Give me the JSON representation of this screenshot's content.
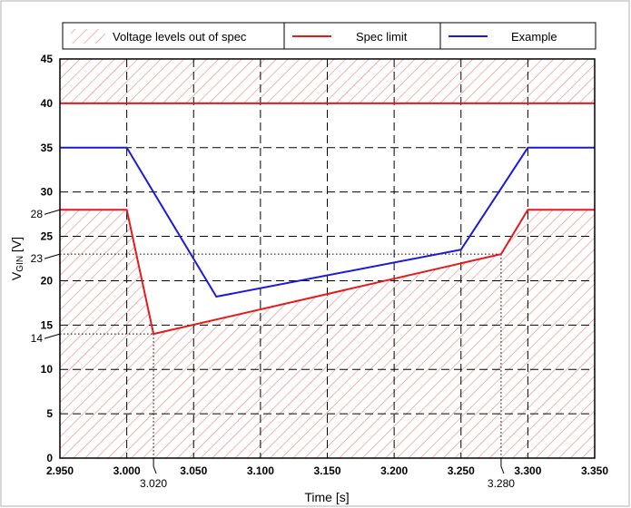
{
  "chart_data": {
    "type": "line",
    "title": "",
    "xlabel": "Time [s]",
    "ylabel": "V",
    "ylabel_sub": "GIN",
    "ylabel_unit": " [V]",
    "xlim": [
      2.95,
      3.35
    ],
    "ylim": [
      0,
      45
    ],
    "x_ticks": [
      "2.950",
      "3.000",
      "3.050",
      "3.100",
      "3.150",
      "3.200",
      "3.250",
      "3.300",
      "3.350"
    ],
    "y_ticks": [
      "0",
      "5",
      "10",
      "15",
      "20",
      "25",
      "30",
      "35",
      "40",
      "45"
    ],
    "grid": true,
    "legend_position": "top",
    "legend": [
      "Voltage levels out of spec",
      "Spec limit",
      "Example"
    ],
    "series": [
      {
        "name": "Spec limit",
        "color": "#e31b1b",
        "x": [
          2.95,
          3.0,
          3.02,
          3.28,
          3.3,
          3.35
        ],
        "y": [
          28,
          28,
          14,
          23,
          28,
          28
        ]
      },
      {
        "name": "Spec limit",
        "color": "#e31b1b",
        "x": [
          2.95,
          3.35
        ],
        "y": [
          40,
          40
        ]
      },
      {
        "name": "Example",
        "color": "#1a1adc",
        "x": [
          2.95,
          3.0,
          3.067,
          3.25,
          3.3,
          3.35
        ],
        "y": [
          35,
          35,
          18.2,
          23.5,
          35,
          35
        ]
      }
    ],
    "annotations": {
      "y": [
        {
          "label": "28",
          "value": 28
        },
        {
          "label": "23",
          "value": 23
        },
        {
          "label": "14",
          "value": 14
        }
      ],
      "x": [
        {
          "label": "3.020",
          "value": 3.02
        },
        {
          "label": "3.280",
          "value": 3.28
        }
      ]
    },
    "hatch_color": "#f08080"
  }
}
